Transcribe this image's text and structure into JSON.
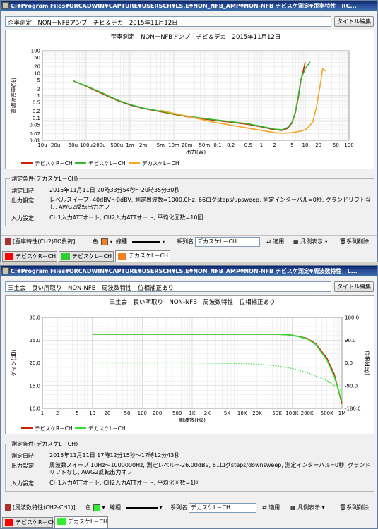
{
  "window1": {
    "title": "C:¥Program Files¥ORCADWIN¥CAPTURE¥USERSCH¥LS.E¥NON_NFB_AMP¥NON-NFB チビスケ測定¥歪率特性　RC...",
    "title_input": "歪率測定　NON－NFBアンプ　チビ＆デカ　2015年11月12日",
    "title_edit_button": "タイトル編集",
    "conditions": {
      "group_label": "測定条件(デカスケL－CH)",
      "rows": [
        {
          "label": "測定日時:",
          "value": "2015年11月11日 20時33分54秒～20時35分30秒"
        },
        {
          "label": "出力設定:",
          "value": "レベルスイープ -40dBV～0dBV, 測定周波数=1000.0Hz, 66ログsteps/upsweep, 測定インターバル=0秒, グランドリフトなし, AWG2反転出力オフ"
        },
        {
          "label": "入力設定:",
          "value": "CH1入力ATTオート, CH2入力ATTオート, 平均化回数=10回"
        }
      ]
    },
    "toolbar": {
      "dropdown": "[歪率特性(CH2)8Ω負荷]",
      "color_label": "色",
      "color_value": "#f58220",
      "linetype_label": "線種",
      "series_name_label": "系列名",
      "series_name_value": "デカスケL－CH",
      "apply_button": "適用",
      "legend_button": "凡例表示",
      "delete_button": "系列削除"
    },
    "tabs": [
      {
        "label": "チビスケR－CH",
        "color": "#ff0000",
        "selected": false
      },
      {
        "label": "チビスケL－CH",
        "color": "#33cc33",
        "selected": false
      },
      {
        "label": "デカスケL－CH",
        "color": "#f58220",
        "selected": true
      }
    ]
  },
  "window2": {
    "title": "C:¥Program Files¥ORCADWIN¥CAPTURE¥USERSCH¥LS.E¥NON_NFB_AMP¥NON-NFB チビスケ測定¥周波数特性　L...",
    "title_input": "三土会　良い所取り　NON-NFB　周波数特性　位相補正あり",
    "title_edit_button": "タイトル編集",
    "conditions": {
      "group_label": "測定条件(デカスケL－CH)",
      "rows": [
        {
          "label": "測定日時:",
          "value": "2015年11月11日 17時12分15秒～17時12分43秒"
        },
        {
          "label": "出力設定:",
          "value": "周波数スイープ 10Hz～1000000Hz, 測定レベル=-26.00dBV, 61ログsteps/downsweep, 測定インターバル=0秒, グランドリフトなし, AWG2反転出力オフ"
        },
        {
          "label": "入力設定:",
          "value": "CH1入力ATTオート, CH2入力ATTオート, 平均化回数=1回"
        }
      ]
    },
    "toolbar": {
      "dropdown": "[周波数特性(CH2-CH1)]",
      "color_label": "色",
      "color_value": "#33ee33",
      "linetype_label": "線種",
      "series_name_label": "系列名",
      "series_name_value": "デカスケL－CH",
      "apply_button": "適用",
      "legend_button": "凡例表示",
      "delete_button": "系列削除"
    },
    "tabs": [
      {
        "label": "チビスケR－CH",
        "color": "#ff0000",
        "selected": false
      },
      {
        "label": "デカスケL－CH",
        "color": "#33ee33",
        "selected": true
      }
    ]
  },
  "chart_data": [
    {
      "type": "line",
      "title": "歪率測定　NON－NFBアンプ　チビ＆デカ　2015年11月12日",
      "xlabel": "出力(W)",
      "ylabel": "高調波歪率(%)",
      "x_scale": "log",
      "y_scale": "log",
      "xlim": [
        1e-05,
        100
      ],
      "ylim": [
        0.01,
        100
      ],
      "grid": true,
      "legend_position": "bottom",
      "x_tick_labels": [
        "10u",
        "20u",
        "50u",
        "100u",
        "200u",
        "500u",
        "1m",
        "2m",
        "5m",
        "10m",
        "20m",
        "50m",
        "0.1",
        "0.2",
        "0.5",
        "1",
        "2",
        "5",
        "10",
        "20",
        "50",
        "100"
      ],
      "y_tick_labels": [
        "100",
        "50",
        "20",
        "10",
        "5",
        "2",
        "1",
        "0.5",
        "0.2",
        "0.1",
        "0.05",
        "0.02",
        "0.01"
      ],
      "series": [
        {
          "name": "チビスケR－CH",
          "color": "#cc2200",
          "x": [
            5e-05,
            0.0001,
            0.0002,
            0.0005,
            0.001,
            0.002,
            0.005,
            0.01,
            0.02,
            0.05,
            0.1,
            0.2,
            0.5,
            1,
            2,
            3,
            4,
            5,
            6,
            7,
            8,
            10
          ],
          "y": [
            4.6,
            2.6,
            1.4,
            0.62,
            0.38,
            0.27,
            0.19,
            0.145,
            0.115,
            0.09,
            0.075,
            0.065,
            0.052,
            0.04,
            0.03,
            0.028,
            0.035,
            0.06,
            0.18,
            0.9,
            5,
            30
          ]
        },
        {
          "name": "チビスケL－CH",
          "color": "#33bb33",
          "x": [
            5e-05,
            0.0001,
            0.0002,
            0.0005,
            0.001,
            0.002,
            0.005,
            0.01,
            0.02,
            0.05,
            0.1,
            0.2,
            0.5,
            1,
            2,
            3,
            4,
            5,
            6,
            7,
            8,
            10,
            13
          ],
          "y": [
            4.6,
            2.7,
            1.5,
            0.65,
            0.4,
            0.28,
            0.2,
            0.15,
            0.12,
            0.095,
            0.08,
            0.068,
            0.055,
            0.042,
            0.032,
            0.03,
            0.038,
            0.065,
            0.2,
            1.1,
            5.5,
            16,
            32
          ]
        },
        {
          "name": "デカスケL－CH",
          "color": "#f5a623",
          "x": [
            0.005,
            0.01,
            0.02,
            0.05,
            0.1,
            0.2,
            0.5,
            1,
            2,
            3,
            5,
            8,
            10,
            12,
            15,
            18,
            22,
            25,
            30
          ],
          "y": [
            0.22,
            0.16,
            0.12,
            0.08,
            0.06,
            0.048,
            0.035,
            0.028,
            0.022,
            0.021,
            0.022,
            0.026,
            0.03,
            0.04,
            0.07,
            0.3,
            3,
            16,
            12
          ]
        }
      ]
    },
    {
      "type": "line",
      "title": "三土会　良い所取り　NON-NFB　周波数特性　位相補正あり",
      "xlabel": "周波数(Hz)",
      "ylabel": "ゲイン(dB)",
      "y2label": "位相(deg)",
      "x_scale": "log",
      "xlim": [
        1,
        1000000
      ],
      "ylim": [
        10,
        30
      ],
      "y2lim": [
        -180,
        180
      ],
      "grid": true,
      "legend_position": "bottom",
      "x_tick_labels": [
        "1",
        "2",
        "5",
        "10",
        "20",
        "50",
        "100",
        "200",
        "500",
        "1K",
        "2K",
        "5K",
        "10K",
        "20K",
        "50K",
        "100K",
        "200K",
        "500K",
        "1M"
      ],
      "y_tick_labels": [
        "30.0",
        "25.0",
        "20.0",
        "15.0",
        "10.0"
      ],
      "y2_tick_labels": [
        "180.0",
        "90.0",
        "0.0",
        "-90.0",
        "-180.0"
      ],
      "series": [
        {
          "name": "チビスケR－CH",
          "color": "#cc2200",
          "axis": "left",
          "x": [
            10,
            100,
            1000,
            10000,
            50000,
            100000,
            200000,
            300000,
            500000,
            700000,
            1000000
          ],
          "y": [
            26.3,
            26.3,
            26.3,
            26.3,
            26.3,
            26.1,
            25.4,
            24.2,
            21,
            17.5,
            11
          ]
        },
        {
          "name": "デカスケL－CH",
          "color": "#33dd33",
          "axis": "left",
          "x": [
            10,
            100,
            1000,
            10000,
            50000,
            100000,
            200000,
            300000,
            500000,
            700000,
            1000000
          ],
          "y": [
            26.3,
            26.3,
            26.3,
            26.3,
            26.3,
            26.1,
            25.3,
            24,
            20.6,
            17,
            11.5
          ]
        },
        {
          "name": "デカスケL－CH",
          "color": "#33dd33",
          "axis": "right",
          "dashed": true,
          "x": [
            10,
            100,
            1000,
            10000,
            20000,
            50000,
            100000,
            200000,
            500000,
            1000000
          ],
          "y": [
            0,
            0,
            0,
            -2,
            -5,
            -12,
            -22,
            -38,
            -70,
            -110
          ]
        }
      ]
    }
  ]
}
